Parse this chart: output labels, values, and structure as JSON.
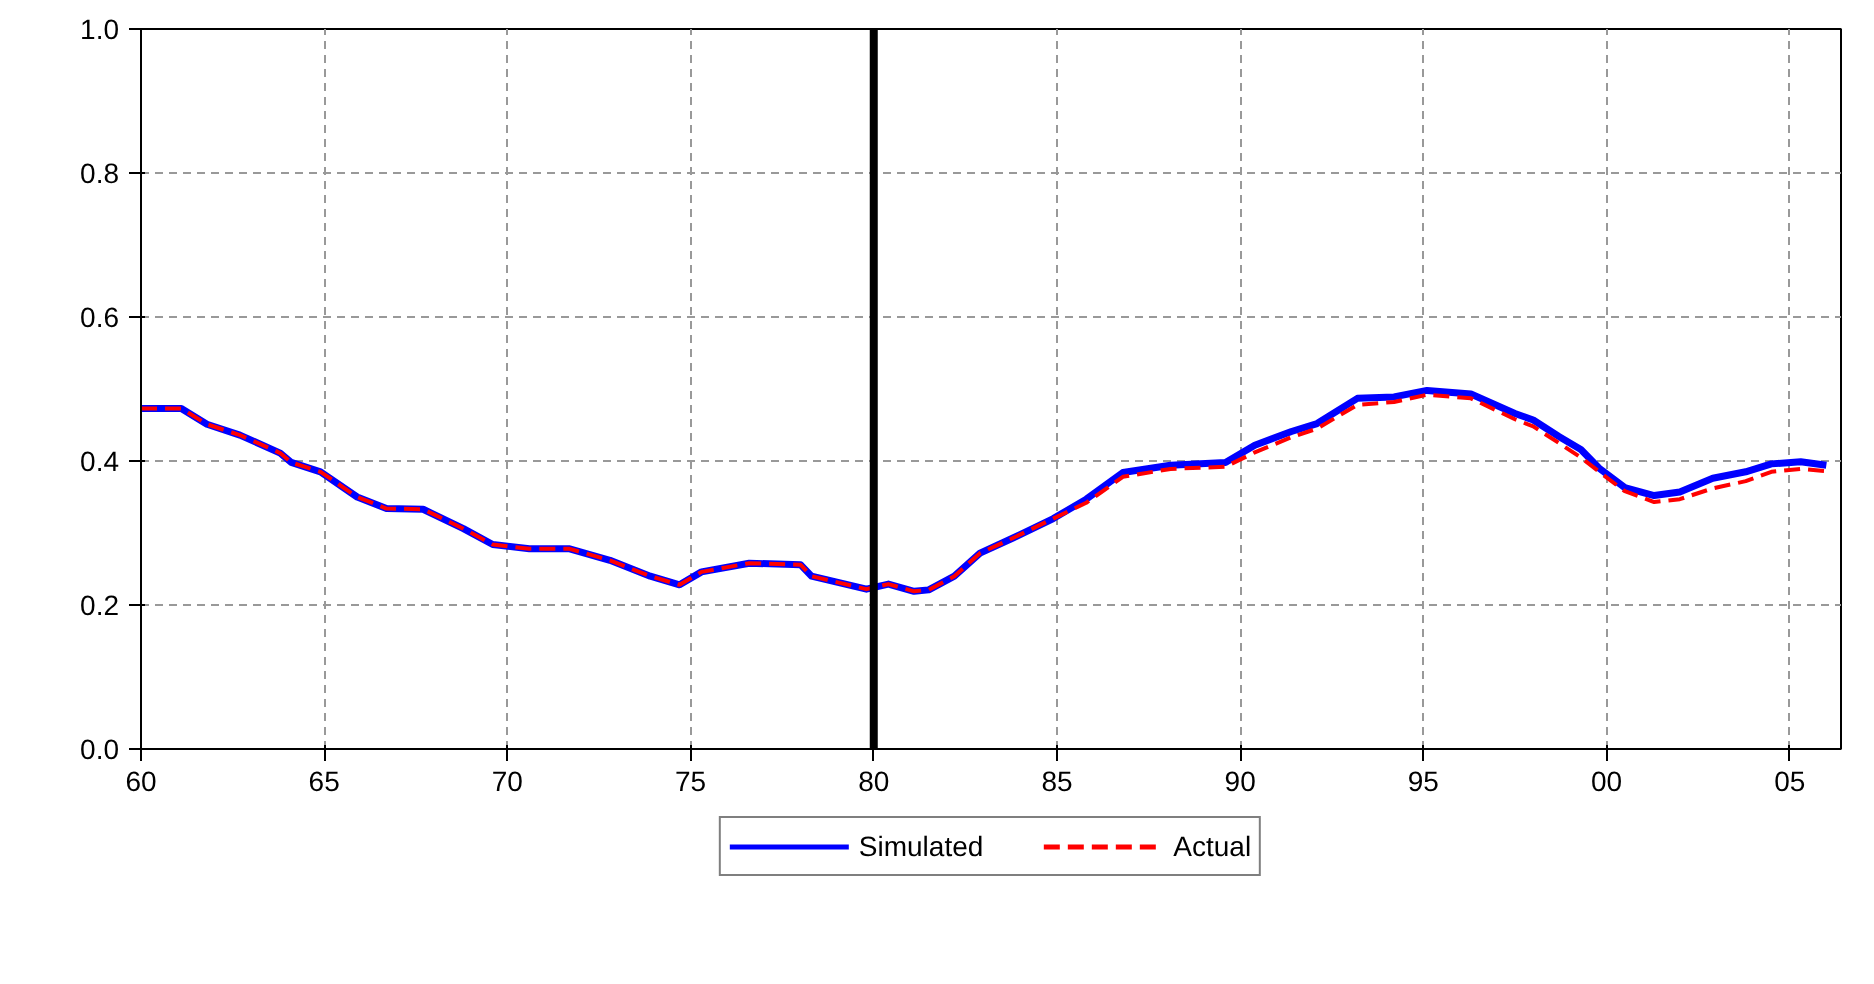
{
  "chart_data": {
    "type": "line",
    "x": [
      1960,
      1961.1,
      1961.8,
      1962.7,
      1963.8,
      1964.1,
      1964.9,
      1965.9,
      1966.7,
      1967.7,
      1968.8,
      1969.6,
      1970.6,
      1971.7,
      1972.8,
      1973.9,
      1974.7,
      1975.3,
      1976.6,
      1978.0,
      1978.3,
      1979.8,
      1980.4,
      1981.1,
      1981.5,
      1982.2,
      1982.9,
      1983.8,
      1984.9,
      1985.8,
      1986.8,
      1988.1,
      1989.6,
      1990.4,
      1991.4,
      1992.1,
      1993.2,
      1994.2,
      1995.1,
      1996.3,
      1997.5,
      1998.0,
      1998.7,
      1999.3,
      1999.8,
      2000.5,
      2001.3,
      2002.0,
      2002.9,
      2003.8,
      2004.5,
      2005.3,
      2006.0
    ],
    "series": [
      {
        "name": "Simulated",
        "color": "#0000ff",
        "line_style": "solid",
        "values": [
          0.473,
          0.473,
          0.451,
          0.436,
          0.411,
          0.398,
          0.385,
          0.35,
          0.334,
          0.333,
          0.306,
          0.284,
          0.278,
          0.278,
          0.262,
          0.24,
          0.228,
          0.246,
          0.258,
          0.256,
          0.24,
          0.222,
          0.229,
          0.219,
          0.221,
          0.24,
          0.272,
          0.293,
          0.32,
          0.347,
          0.384,
          0.394,
          0.398,
          0.422,
          0.441,
          0.452,
          0.487,
          0.489,
          0.498,
          0.493,
          0.466,
          0.457,
          0.434,
          0.416,
          0.39,
          0.363,
          0.352,
          0.357,
          0.376,
          0.385,
          0.396,
          0.399,
          0.394
        ]
      },
      {
        "name": "Actual",
        "color": "#ff0000",
        "line_style": "dashed",
        "values": [
          0.473,
          0.473,
          0.451,
          0.436,
          0.411,
          0.398,
          0.385,
          0.35,
          0.334,
          0.333,
          0.306,
          0.284,
          0.278,
          0.278,
          0.262,
          0.24,
          0.228,
          0.246,
          0.258,
          0.256,
          0.24,
          0.222,
          0.229,
          0.219,
          0.221,
          0.24,
          0.272,
          0.293,
          0.32,
          0.342,
          0.378,
          0.389,
          0.392,
          0.412,
          0.433,
          0.445,
          0.478,
          0.482,
          0.492,
          0.487,
          0.458,
          0.448,
          0.425,
          0.405,
          0.385,
          0.358,
          0.343,
          0.347,
          0.362,
          0.372,
          0.385,
          0.389,
          0.386
        ]
      }
    ],
    "xlim": [
      1960,
      2006.4
    ],
    "xticks": [
      {
        "value": 1960,
        "label": "60"
      },
      {
        "value": 1965,
        "label": "65"
      },
      {
        "value": 1970,
        "label": "70"
      },
      {
        "value": 1975,
        "label": "75"
      },
      {
        "value": 1980,
        "label": "80"
      },
      {
        "value": 1985,
        "label": "85"
      },
      {
        "value": 1990,
        "label": "90"
      },
      {
        "value": 1995,
        "label": "95"
      },
      {
        "value": 2000,
        "label": "00"
      },
      {
        "value": 2005,
        "label": "05"
      }
    ],
    "ylim": [
      0,
      1
    ],
    "yticks": [
      {
        "value": 0,
        "label": "0.0"
      },
      {
        "value": 0.2,
        "label": "0.2"
      },
      {
        "value": 0.4,
        "label": "0.4"
      },
      {
        "value": 0.6,
        "label": "0.6"
      },
      {
        "value": 0.8,
        "label": "0.8"
      },
      {
        "value": 1,
        "label": "1.0"
      }
    ],
    "ref_lines": [
      {
        "axis": "x",
        "value": 1980,
        "color": "#000000"
      }
    ],
    "grid": true,
    "legend": "bottom"
  }
}
